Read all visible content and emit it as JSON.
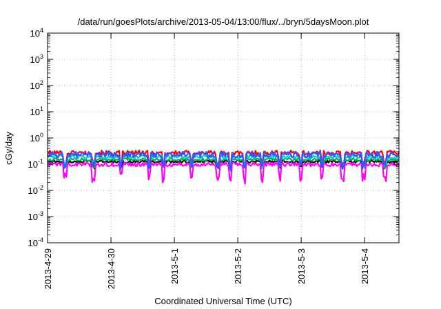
{
  "chart_data": {
    "type": "line",
    "title": "/data/run/goesPlots/archive/2013-05-04/13:00/flux/../bryn/5daysMoon.plot",
    "xlabel": "Coordinated Universal Time (UTC)",
    "ylabel": "cGy/day",
    "y_scale": "log",
    "ylim": [
      0.0001,
      10000
    ],
    "xlim": [
      "2013-04-29T00:00",
      "2013-05-04T13:00"
    ],
    "grid": true,
    "legend": "none",
    "x_ticks": [
      "2013-4-29",
      "2013-4-30",
      "2013-5-1",
      "2013-5-2",
      "2013-5-3",
      "2013-5-4"
    ],
    "y_ticks": [
      {
        "base": "10",
        "exp": "-4"
      },
      {
        "base": "10",
        "exp": "-3"
      },
      {
        "base": "10",
        "exp": "-2"
      },
      {
        "base": "10",
        "exp": "-1"
      },
      {
        "base": "10",
        "exp": "0"
      },
      {
        "base": "10",
        "exp": "1"
      },
      {
        "base": "10",
        "exp": "2"
      },
      {
        "base": "10",
        "exp": "3"
      },
      {
        "base": "10",
        "exp": "4"
      }
    ],
    "series": [
      {
        "color": "#ff0000",
        "level": 0.27,
        "noise": 0.18,
        "dip": 0.45
      },
      {
        "color": "#000000",
        "level": 0.125,
        "noise": 0.1,
        "dip": 0.2
      },
      {
        "color": "#00b050",
        "level": 0.15,
        "noise": 0.12,
        "dip": 0.25
      },
      {
        "color": "#00d0d0",
        "level": 0.19,
        "noise": 0.14,
        "dip": 0.3
      },
      {
        "color": "#ff00ff",
        "level": 0.098,
        "noise": 0.16,
        "dip": 0.6
      },
      {
        "color": "#3355ff",
        "level": 0.23,
        "noise": 0.22,
        "dip": 0.45
      }
    ]
  }
}
